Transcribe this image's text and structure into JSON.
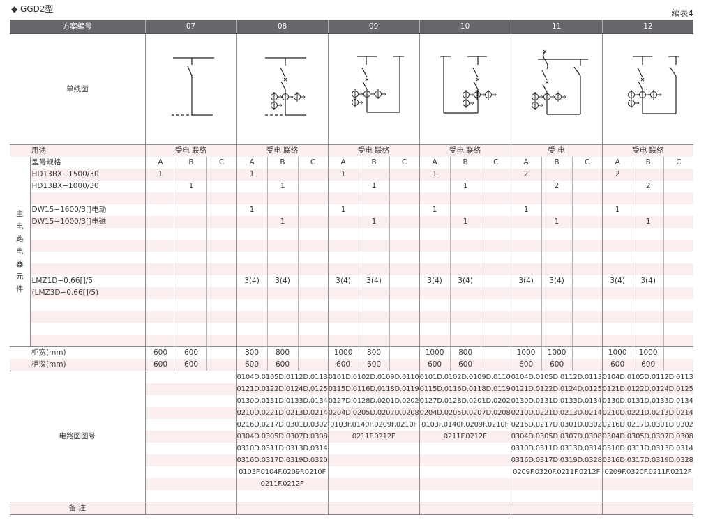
{
  "page": {
    "title": "◆ GGD2型",
    "continued": "续表4"
  },
  "header": {
    "label": "方案编号"
  },
  "labels": {
    "diagram": "单线图",
    "usage": "用途",
    "model": "型号规格",
    "side": [
      "主",
      "电",
      "路",
      "电",
      "器",
      "元",
      "件"
    ],
    "width": "柜宽(mm)",
    "depth": "柜深(mm)",
    "circuit": "电路图图号",
    "remark": "备 注"
  },
  "sub_columns": [
    "A",
    "B",
    "C"
  ],
  "components": [
    "HD13BX−1500/30",
    "HD13BX−1000/30",
    "",
    "DW15−1600/3[]电动",
    "DW15−1000/3[]电磁",
    "",
    "",
    "",
    "",
    "LMZ1D−0.66[]/5",
    "(LMZ3D−0.66[]/5)",
    "",
    "",
    "",
    ""
  ],
  "schemes": [
    {
      "number": "07",
      "usage": "受电 联络",
      "values": [
        [
          "1",
          "",
          ""
        ],
        [
          "",
          "1",
          ""
        ],
        [
          "",
          "",
          ""
        ],
        [
          "",
          "",
          ""
        ],
        [
          "",
          "",
          ""
        ],
        [
          "",
          "",
          ""
        ],
        [
          "",
          "",
          ""
        ],
        [
          "",
          "",
          ""
        ],
        [
          "",
          "",
          ""
        ],
        [
          "",
          "",
          ""
        ],
        [
          "",
          "",
          ""
        ],
        [
          "",
          "",
          ""
        ],
        [
          "",
          "",
          ""
        ],
        [
          "",
          "",
          ""
        ],
        [
          "",
          "",
          ""
        ]
      ],
      "width": [
        "600",
        "600",
        ""
      ],
      "depth": [
        "600",
        "600",
        ""
      ],
      "circuits": []
    },
    {
      "number": "08",
      "usage": "受电 联络",
      "values": [
        [
          "1",
          "",
          ""
        ],
        [
          "",
          "1",
          ""
        ],
        [
          "",
          "",
          ""
        ],
        [
          "1",
          "",
          ""
        ],
        [
          "",
          "1",
          ""
        ],
        [
          "",
          "",
          ""
        ],
        [
          "",
          "",
          ""
        ],
        [
          "",
          "",
          ""
        ],
        [
          "",
          "",
          ""
        ],
        [
          "3(4)",
          "3(4)",
          ""
        ],
        [
          "",
          "",
          ""
        ],
        [
          "",
          "",
          ""
        ],
        [
          "",
          "",
          ""
        ],
        [
          "",
          "",
          ""
        ],
        [
          "",
          "",
          ""
        ]
      ],
      "width": [
        "800",
        "800",
        ""
      ],
      "depth": [
        "600",
        "600",
        ""
      ],
      "circuits": [
        "0104D.0105D.0112D.0113D",
        "0121D.0122D.0124D.0125D",
        "0130D.0131D.0133D.0134D",
        "0210D.0221D.0213D.0214D",
        "0216D.0217D.0301D.0302D",
        "0304D.0305D.0307D.0308D",
        "0310D.0311D.0313D.0314D",
        "0316D.0317D.0319D.0320D",
        "0103F.0104F.0209F.0210F",
        "0211F.0212F"
      ]
    },
    {
      "number": "09",
      "usage": "受电 联络",
      "values": [
        [
          "1",
          "",
          ""
        ],
        [
          "",
          "1",
          ""
        ],
        [
          "",
          "",
          ""
        ],
        [
          "1",
          "",
          ""
        ],
        [
          "",
          "1",
          ""
        ],
        [
          "",
          "",
          ""
        ],
        [
          "",
          "",
          ""
        ],
        [
          "",
          "",
          ""
        ],
        [
          "",
          "",
          ""
        ],
        [
          "3(4)",
          "3(4)",
          ""
        ],
        [
          "",
          "",
          ""
        ],
        [
          "",
          "",
          ""
        ],
        [
          "",
          "",
          ""
        ],
        [
          "",
          "",
          ""
        ],
        [
          "",
          "",
          ""
        ]
      ],
      "width": [
        "1000",
        "800",
        ""
      ],
      "depth": [
        "600",
        "600",
        ""
      ],
      "circuits": [
        "0101D.0102D.0109D.0110D",
        "0115D.0116D.0118D.0119D",
        "0127D.0128D.0201D.0202D",
        "0204D.0205D.0207D.0208D",
        "0103F.0140F.0209F.0210F",
        "0211F.0212F"
      ]
    },
    {
      "number": "10",
      "usage": "受电 联络",
      "values": [
        [
          "1",
          "",
          ""
        ],
        [
          "",
          "1",
          ""
        ],
        [
          "",
          "",
          ""
        ],
        [
          "1",
          "",
          ""
        ],
        [
          "",
          "1",
          ""
        ],
        [
          "",
          "",
          ""
        ],
        [
          "",
          "",
          ""
        ],
        [
          "",
          "",
          ""
        ],
        [
          "",
          "",
          ""
        ],
        [
          "3(4)",
          "3(4)",
          ""
        ],
        [
          "",
          "",
          ""
        ],
        [
          "",
          "",
          ""
        ],
        [
          "",
          "",
          ""
        ],
        [
          "",
          "",
          ""
        ],
        [
          "",
          "",
          ""
        ]
      ],
      "width": [
        "1000",
        "800",
        ""
      ],
      "depth": [
        "600",
        "600",
        ""
      ],
      "circuits": [
        "0101D.0102D.0109D.0110D",
        "0115D.0116D.0118D.0119D",
        "0127D.0128D.0201D.0202D",
        "0204D.0205D.0207D.0208D",
        "0103F.0140F.0209F.0210F",
        "0211F.0212F"
      ]
    },
    {
      "number": "11",
      "usage": "受 电",
      "values": [
        [
          "2",
          "",
          ""
        ],
        [
          "",
          "2",
          ""
        ],
        [
          "",
          "",
          ""
        ],
        [
          "1",
          "",
          ""
        ],
        [
          "",
          "1",
          ""
        ],
        [
          "",
          "",
          ""
        ],
        [
          "",
          "",
          ""
        ],
        [
          "",
          "",
          ""
        ],
        [
          "",
          "",
          ""
        ],
        [
          "3(4)",
          "3(4)",
          ""
        ],
        [
          "",
          "",
          ""
        ],
        [
          "",
          "",
          ""
        ],
        [
          "",
          "",
          ""
        ],
        [
          "",
          "",
          ""
        ],
        [
          "",
          "",
          ""
        ]
      ],
      "width": [
        "1000",
        "1000",
        ""
      ],
      "depth": [
        "600",
        "600",
        ""
      ],
      "circuits": [
        "0104D.0105D.0112D.0113D",
        "0121D.0122D.0124D.0125D",
        "0130D.0131D.0133D.0134D",
        "0210D.0221D.0213D.0214D",
        "0216D.0217D.0301D.0302D",
        "0304D.0305D.0307D.0308D",
        "0310D.0311D.0313D.0314D",
        "0316D.0317D.0319D.0328D",
        "0209F.0320F.0211F.0212F"
      ]
    },
    {
      "number": "12",
      "usage": "受电 联络",
      "values": [
        [
          "2",
          "",
          ""
        ],
        [
          "",
          "2",
          ""
        ],
        [
          "",
          "",
          ""
        ],
        [
          "1",
          "",
          ""
        ],
        [
          "",
          "1",
          ""
        ],
        [
          "",
          "",
          ""
        ],
        [
          "",
          "",
          ""
        ],
        [
          "",
          "",
          ""
        ],
        [
          "",
          "",
          ""
        ],
        [
          "3(4)",
          "3(4)",
          ""
        ],
        [
          "",
          "",
          ""
        ],
        [
          "",
          "",
          ""
        ],
        [
          "",
          "",
          ""
        ],
        [
          "",
          "",
          ""
        ],
        [
          "",
          "",
          ""
        ]
      ],
      "width": [
        "1000",
        "1000",
        ""
      ],
      "depth": [
        "600",
        "600",
        ""
      ],
      "circuits": [
        "0104D.0105D.0112D.0113D",
        "0121D.0122D.0124D.0125D",
        "0130D.0131D.0133D.0134D",
        "0210D.0221D.0213D.0214D",
        "0216D.0217D.0301D.0302D",
        "0304D.0305D.0307D.0308D",
        "0310D.0311D.0313D.0314D",
        "0316D.0317D.0319D.0328D",
        "0209F.0320F.0211F.0212F"
      ]
    }
  ]
}
